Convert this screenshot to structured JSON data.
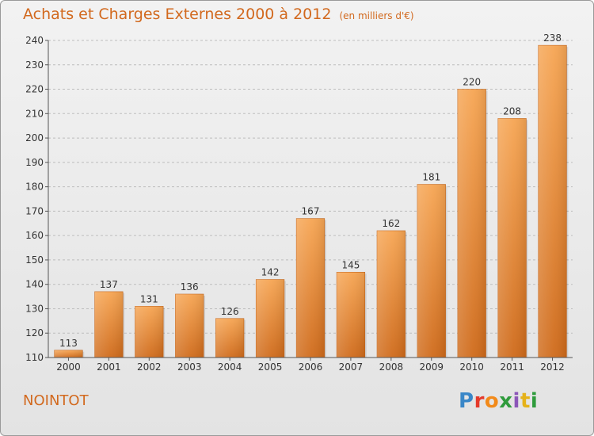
{
  "header": {
    "title": "Achats et Charges Externes 2000 à 2012",
    "unit": "(en milliers d'€)"
  },
  "footer": {
    "commune": "NOINTOT",
    "logo_letters": [
      "P",
      "r",
      "o",
      "x",
      "i",
      "t",
      "i"
    ]
  },
  "colors": {
    "title": "#d2691e",
    "bar_top": "#f6a553",
    "bar_bottom": "#cf6a1a"
  },
  "chart_data": {
    "type": "bar",
    "title": "Achats et Charges Externes 2000 à 2012",
    "subtitle": "(en milliers d'€)",
    "categories": [
      "2000",
      "2001",
      "2002",
      "2003",
      "2004",
      "2005",
      "2006",
      "2007",
      "2008",
      "2009",
      "2010",
      "2011",
      "2012"
    ],
    "values": [
      113,
      137,
      131,
      136,
      126,
      142,
      167,
      145,
      162,
      181,
      220,
      208,
      238
    ],
    "ylim": [
      110,
      240
    ],
    "yticks": [
      110,
      120,
      130,
      140,
      150,
      160,
      170,
      180,
      190,
      200,
      210,
      220,
      230,
      240
    ],
    "grid": true,
    "legend": "none"
  }
}
